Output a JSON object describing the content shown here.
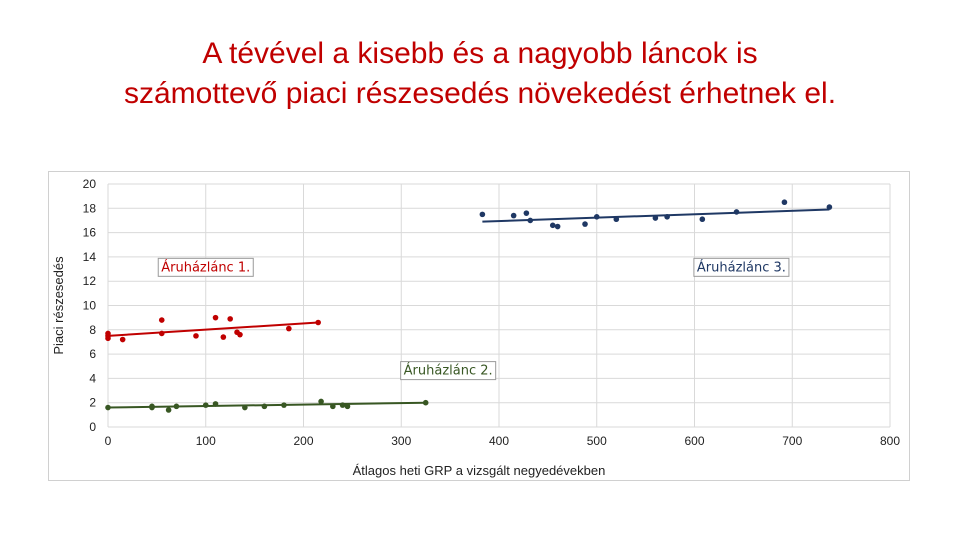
{
  "slide": {
    "title_line1": "A tévével a kisebb és a nagyobb láncok is",
    "title_line2": "számottevő piaci részesedés növekedést érhetnek el."
  },
  "chart_data": {
    "type": "scatter",
    "xlabel": "Átlagos heti GRP a vizsgált negyedévekben",
    "ylabel": "Piaci részesedés",
    "xlim": [
      0,
      800
    ],
    "ylim": [
      0,
      20
    ],
    "xticks": [
      "0",
      "100",
      "200",
      "300",
      "400",
      "500",
      "600",
      "700",
      "800"
    ],
    "yticks": [
      "0",
      "2",
      "4",
      "6",
      "8",
      "10",
      "12",
      "14",
      "16",
      "18",
      "20"
    ],
    "grid": true,
    "series": [
      {
        "name": "Áruházlánc 1.",
        "color": "#c00000",
        "points": [
          [
            0,
            7.7
          ],
          [
            0,
            7.3
          ],
          [
            0,
            7.5
          ],
          [
            15,
            7.2
          ],
          [
            55,
            8.8
          ],
          [
            55,
            7.7
          ],
          [
            90,
            7.5
          ],
          [
            110,
            9.0
          ],
          [
            118,
            7.4
          ],
          [
            125,
            8.9
          ],
          [
            132,
            7.8
          ],
          [
            135,
            7.6
          ],
          [
            185,
            8.1
          ],
          [
            215,
            8.6
          ]
        ],
        "trend": [
          [
            0,
            7.5
          ],
          [
            215,
            8.6
          ]
        ]
      },
      {
        "name": "Áruházlánc 2.",
        "color": "#385723",
        "points": [
          [
            0,
            1.6
          ],
          [
            45,
            1.6
          ],
          [
            45,
            1.7
          ],
          [
            62,
            1.4
          ],
          [
            70,
            1.7
          ],
          [
            100,
            1.8
          ],
          [
            110,
            1.9
          ],
          [
            140,
            1.6
          ],
          [
            160,
            1.7
          ],
          [
            180,
            1.8
          ],
          [
            218,
            2.1
          ],
          [
            230,
            1.7
          ],
          [
            240,
            1.8
          ],
          [
            245,
            1.7
          ],
          [
            325,
            2.0
          ]
        ],
        "trend": [
          [
            0,
            1.6
          ],
          [
            325,
            2.0
          ]
        ]
      },
      {
        "name": "Áruházlánc 3.",
        "color": "#1f3864",
        "points": [
          [
            383,
            17.5
          ],
          [
            415,
            17.4
          ],
          [
            428,
            17.6
          ],
          [
            432,
            17.0
          ],
          [
            455,
            16.6
          ],
          [
            460,
            16.5
          ],
          [
            488,
            16.7
          ],
          [
            500,
            17.3
          ],
          [
            520,
            17.1
          ],
          [
            560,
            17.2
          ],
          [
            572,
            17.3
          ],
          [
            608,
            17.1
          ],
          [
            643,
            17.7
          ],
          [
            692,
            18.5
          ],
          [
            738,
            18.1
          ]
        ],
        "trend": [
          [
            383,
            16.9
          ],
          [
            738,
            17.9
          ]
        ]
      }
    ],
    "annotations": [
      {
        "text": "Áruházlánc 1.",
        "series": 0,
        "x": 100,
        "y": 13.1
      },
      {
        "text": "Áruházlánc 2.",
        "series": 1,
        "x": 348,
        "y": 4.6
      },
      {
        "text": "Áruházlánc 3.",
        "series": 2,
        "x": 648,
        "y": 13.1
      }
    ]
  }
}
